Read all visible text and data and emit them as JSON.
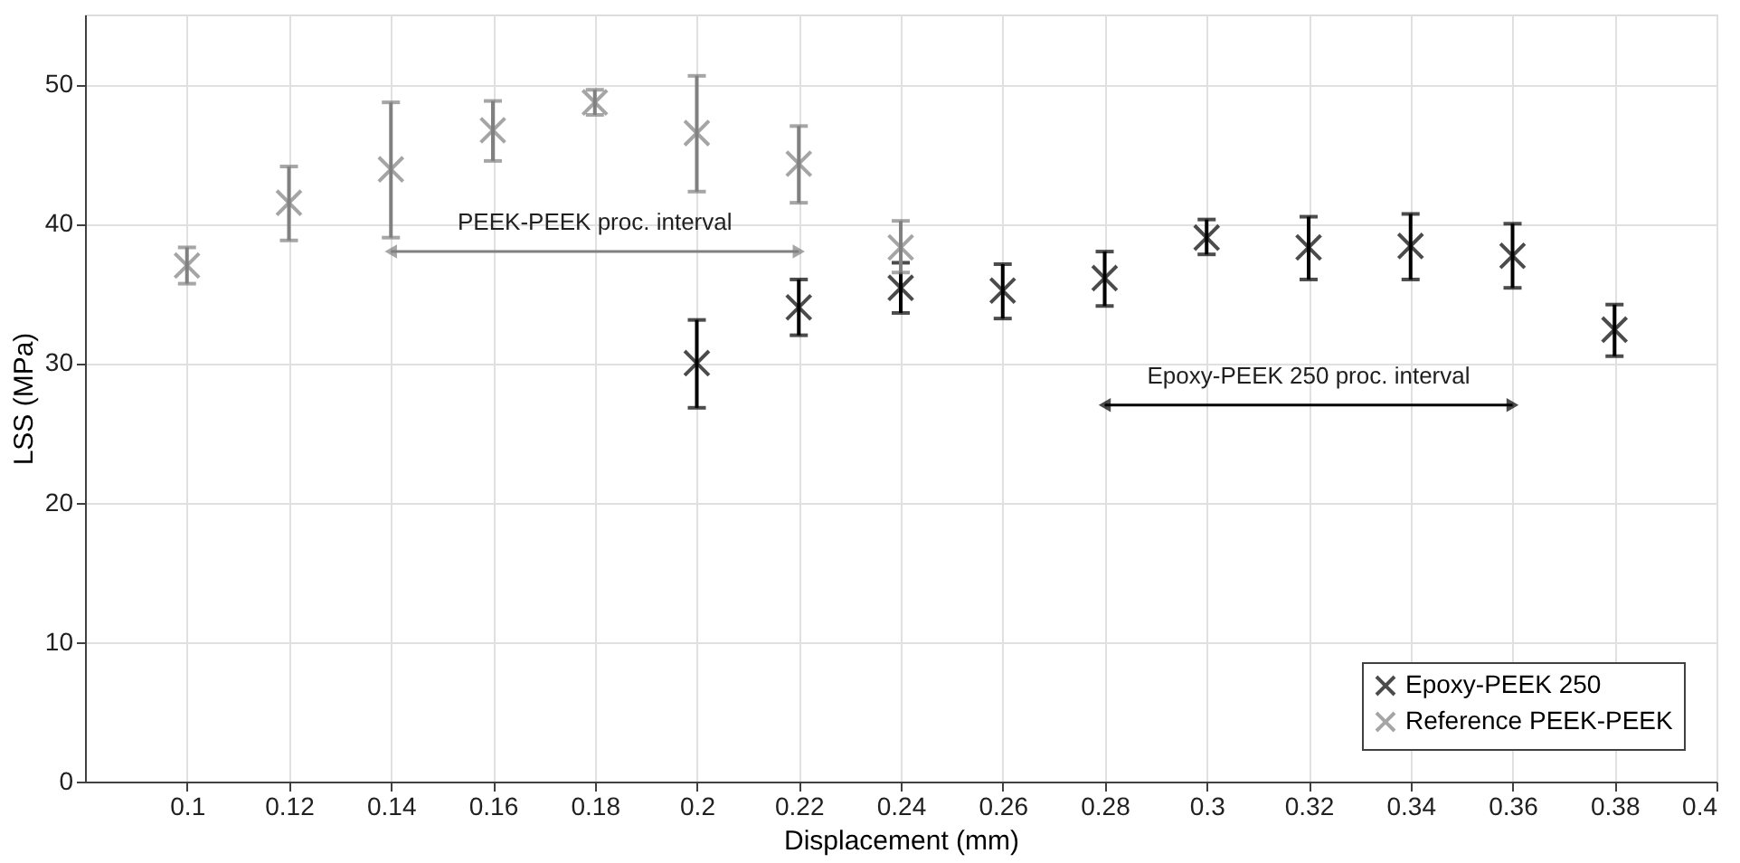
{
  "chart_data": {
    "type": "scatter",
    "xlabel": "Displacement (mm)",
    "ylabel": "LSS (MPa)",
    "xlim": [
      0.08,
      0.4
    ],
    "xticks": [
      0.1,
      0.12,
      0.14,
      0.16,
      0.18,
      0.2,
      0.22,
      0.24,
      0.26,
      0.28,
      0.3,
      0.32,
      0.34,
      0.36,
      0.38,
      0.4
    ],
    "ylim": [
      0,
      55
    ],
    "yticks": [
      0,
      10,
      20,
      30,
      40,
      50
    ],
    "grid": true,
    "legend": "bottom right",
    "series": [
      {
        "name": "Epoxy-PEEK 250",
        "color": "#000000",
        "marker": "cross",
        "x": [
          0.2,
          0.22,
          0.24,
          0.26,
          0.28,
          0.3,
          0.32,
          0.34,
          0.36,
          0.38
        ],
        "values": [
          30,
          34,
          35.4,
          35.2,
          36.1,
          39,
          38.3,
          38.4,
          37.7,
          32.4
        ],
        "errors": [
          [
            26.8,
            33.1
          ],
          [
            32,
            36
          ],
          [
            33.6,
            37.2
          ],
          [
            33.2,
            37.1
          ],
          [
            34.1,
            38
          ],
          [
            37.8,
            40.3
          ],
          [
            36,
            40.5
          ],
          [
            36,
            40.7
          ],
          [
            35.4,
            40
          ],
          [
            30.5,
            34.2
          ]
        ]
      },
      {
        "name": "Reference PEEK-PEEK",
        "color": "#808080",
        "marker": "cross",
        "x": [
          0.1,
          0.12,
          0.14,
          0.16,
          0.18,
          0.2,
          0.22,
          0.24
        ],
        "values": [
          37,
          41.5,
          43.9,
          46.7,
          48.7,
          46.5,
          44.3,
          38.3
        ],
        "errors": [
          [
            35.7,
            38.3
          ],
          [
            38.8,
            44.1
          ],
          [
            39,
            48.7
          ],
          [
            44.5,
            48.8
          ],
          [
            47.8,
            49.6
          ],
          [
            42.3,
            50.6
          ],
          [
            41.5,
            47
          ],
          [
            36.5,
            40.2
          ]
        ]
      },
      {
        "type": "line",
        "color": "#808080",
        "marker": "triangle",
        "x": [
          0.14,
          0.22
        ],
        "values": [
          38,
          38
        ]
      },
      {
        "type": "line",
        "color": "#000000",
        "marker": "triangle",
        "x": [
          0.28,
          0.36
        ],
        "values": [
          27,
          27
        ]
      }
    ],
    "annotations": [
      "PEEK-PEEK proc. interval",
      "Epoxy-PEEK 250 proc. interval"
    ]
  }
}
